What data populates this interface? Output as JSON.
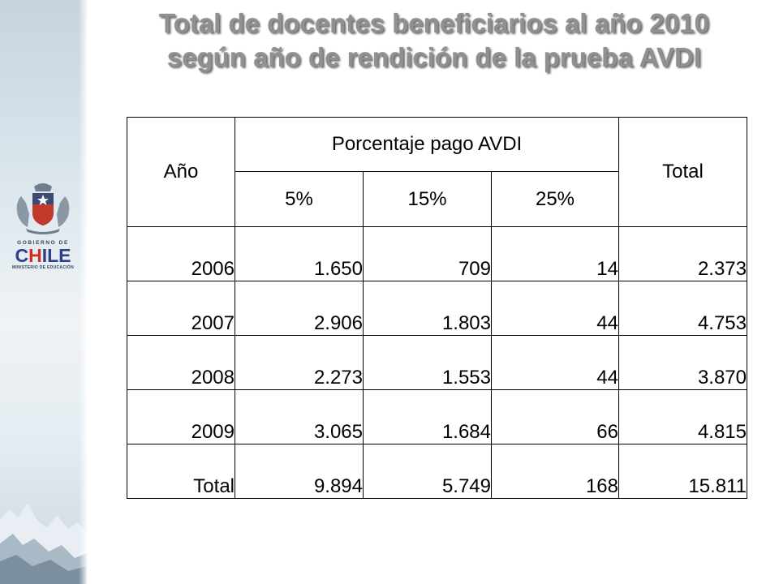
{
  "title": {
    "line1": "Total de docentes beneficiarios al año 2010",
    "line2": "según año de rendición de la prueba AVDI"
  },
  "logo": {
    "top_text": "GOBIERNO DE",
    "brand": "CHILE",
    "bottom_text": "MINISTERIO DE EDUCACIÓN"
  },
  "table": {
    "header": {
      "year": "Año",
      "group": "Porcentaje pago AVDI",
      "total": "Total",
      "sub": [
        "5%",
        "15%",
        "25%"
      ]
    },
    "rows": [
      {
        "year": "2006",
        "p5": "1.650",
        "p15": "709",
        "p25": "14",
        "total": "2.373"
      },
      {
        "year": "2007",
        "p5": "2.906",
        "p15": "1.803",
        "p25": "44",
        "total": "4.753"
      },
      {
        "year": "2008",
        "p5": "2.273",
        "p15": "1.553",
        "p25": "44",
        "total": "3.870"
      },
      {
        "year": "2009",
        "p5": "3.065",
        "p15": "1.684",
        "p25": "66",
        "total": "4.815"
      },
      {
        "year": "Total",
        "p5": "9.894",
        "p15": "5.749",
        "p25": "168",
        "total": "15.811"
      }
    ]
  },
  "colors": {
    "title_text": "#909090",
    "side_band": "#dbe5ec",
    "brand_blue": "#2d3f86",
    "brand_red": "#d52b1e"
  }
}
